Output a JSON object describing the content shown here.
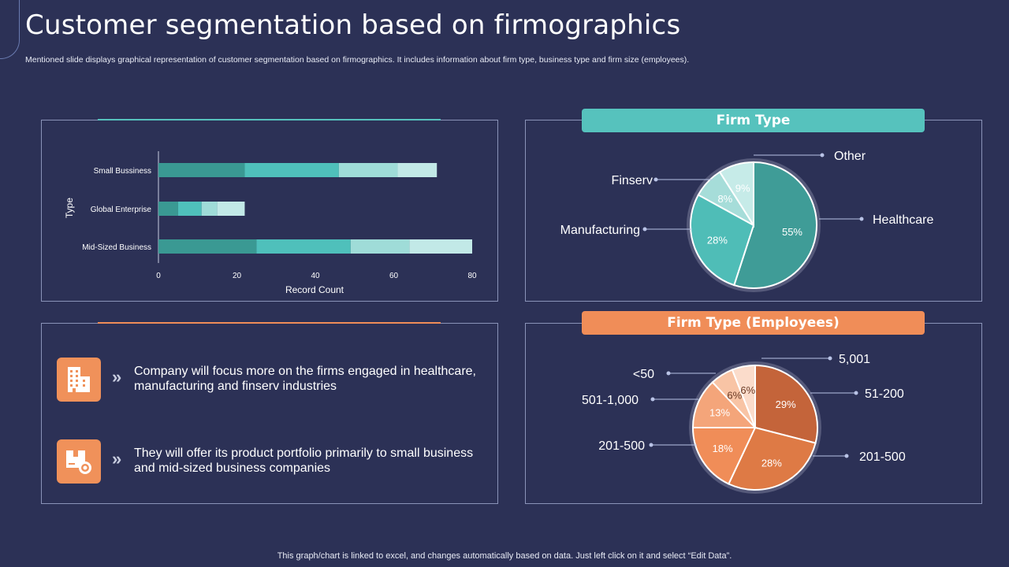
{
  "slide": {
    "title": "Customer segmentation based on firmographics",
    "subtitle": "Mentioned slide displays graphical representation of customer segmentation based on firmographics. It includes information about firm type,  business type and firm size (employees).",
    "footer": "This graph/chart is linked to excel,  and changes automatically based on data. Just left click on it and select “Edit Data”."
  },
  "colors": {
    "teal": [
      "#3a9993",
      "#4fc0bb",
      "#9fdcd8",
      "#c2e9e7"
    ],
    "orange": [
      "#c4643a",
      "#de7a45",
      "#f08d58",
      "#f4a57a",
      "#f8c4a5",
      "#fbe0d0"
    ],
    "tab_teal": "#56c2bd",
    "tab_orange": "#f08d58"
  },
  "firm_type_header": "Firm Type",
  "employees_header": "Firm Type (Employees)",
  "insights": [
    {
      "icon": "building-icon",
      "text": "Company will focus more on the firms engaged in healthcare, manufacturing  and finserv industries"
    },
    {
      "icon": "product-box-gear-icon",
      "text": "They will offer its product portfolio primarily to small business and mid-sized business companies"
    }
  ],
  "chart_data": [
    {
      "type": "bar",
      "orientation": "horizontal",
      "stacked": true,
      "categories": [
        "Small Bussiness",
        "Global Enterprise",
        "Mid-Sized Business"
      ],
      "series": [
        {
          "name": "Segment 1",
          "values": [
            22,
            5,
            25
          ]
        },
        {
          "name": "Segment 2",
          "values": [
            24,
            6,
            24
          ]
        },
        {
          "name": "Segment 3",
          "values": [
            15,
            4,
            15
          ]
        },
        {
          "name": "Segment 4",
          "values": [
            10,
            7,
            16
          ]
        }
      ],
      "xlabel": "Record  Count",
      "ylabel": "Type",
      "xlim": [
        0,
        80
      ],
      "xticks": [
        0,
        20,
        40,
        60,
        80
      ]
    },
    {
      "type": "pie",
      "title": "Firm Type",
      "slices": [
        {
          "label": "Healthcare",
          "value": 55,
          "value_label": "55%"
        },
        {
          "label": "Manufacturing",
          "value": 28,
          "value_label": "28%"
        },
        {
          "label": "Finserv",
          "value": 8,
          "value_label": "8%"
        },
        {
          "label": "Other",
          "value": 9,
          "value_label": "9%"
        }
      ]
    },
    {
      "type": "pie",
      "title": "Firm Type (Employees)",
      "slices": [
        {
          "label": "51-200",
          "value": 29,
          "value_label": "29%"
        },
        {
          "label": "201-500",
          "value": 28,
          "value_label": "28%"
        },
        {
          "label": "201-500",
          "value": 18,
          "value_label": "18%"
        },
        {
          "label": "501-1,000",
          "value": 13,
          "value_label": "13%"
        },
        {
          "label": "<50",
          "value": 6,
          "value_label": "6%"
        },
        {
          "label": "5,001",
          "value": 6,
          "value_label": "6%"
        }
      ]
    }
  ]
}
